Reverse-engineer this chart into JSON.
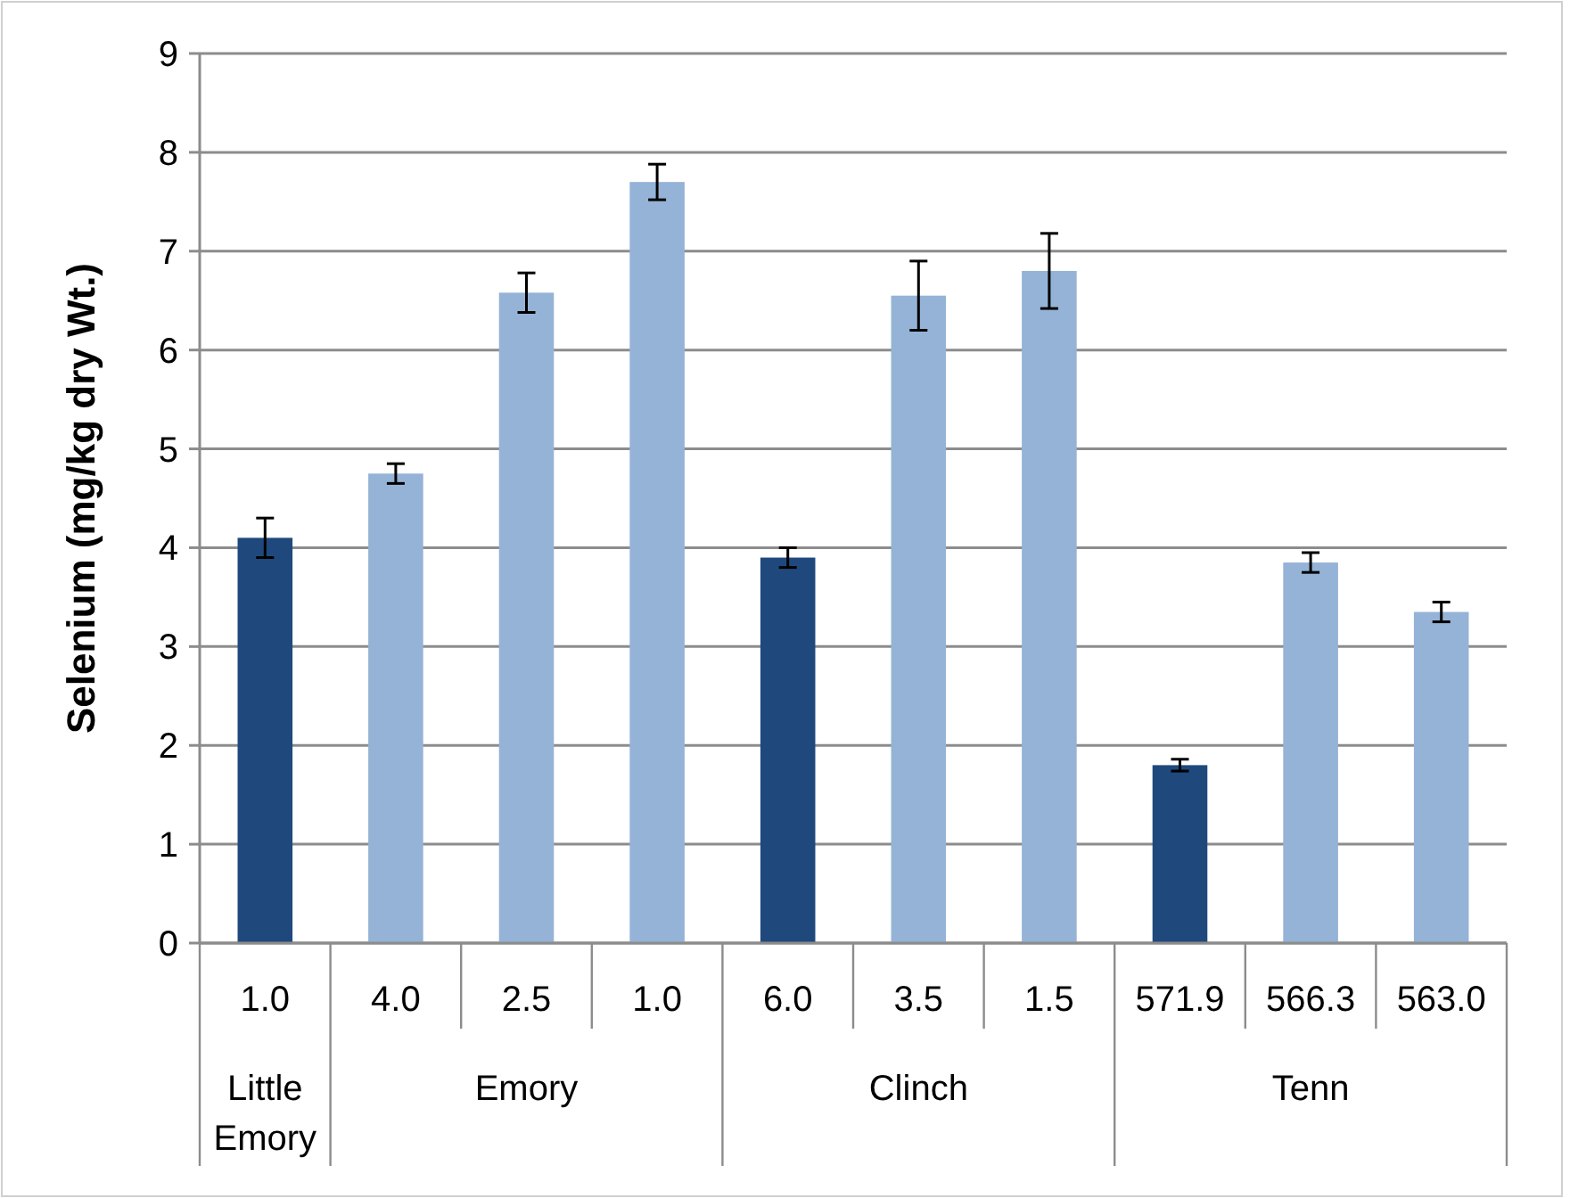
{
  "chart_data": {
    "type": "bar",
    "ylabel": "Selenium (mg/kg dry Wt.)",
    "categories": [
      "1.0",
      "4.0",
      "2.5",
      "1.0",
      "6.0",
      "3.5",
      "1.5",
      "571.9",
      "566.3",
      "563.0"
    ],
    "values": [
      4.1,
      4.75,
      6.58,
      7.7,
      3.9,
      6.55,
      6.8,
      1.8,
      3.85,
      3.35
    ],
    "errors": [
      0.2,
      0.1,
      0.2,
      0.18,
      0.1,
      0.35,
      0.38,
      0.06,
      0.1,
      0.1
    ],
    "colors": [
      "#1f497d",
      "#95b3d7",
      "#95b3d7",
      "#95b3d7",
      "#1f497d",
      "#95b3d7",
      "#95b3d7",
      "#1f497d",
      "#95b3d7",
      "#95b3d7"
    ],
    "ylim": [
      0,
      9
    ],
    "yticks": [
      0,
      1,
      2,
      3,
      4,
      5,
      6,
      7,
      8,
      9
    ],
    "grid": "y",
    "annotations": [
      "Little Emory",
      "Emory",
      "Clinch",
      "Tenn"
    ]
  }
}
